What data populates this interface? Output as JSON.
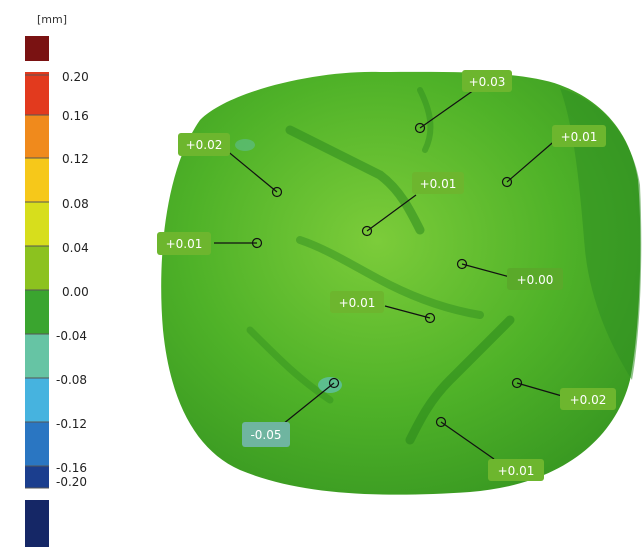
{
  "legend": {
    "unit": "[mm]",
    "ticks": [
      "0.20",
      "0.16",
      "0.12",
      "0.08",
      "0.04",
      "0.00",
      "-0.04",
      "-0.08",
      "-0.12",
      "-0.16",
      "-0.20"
    ],
    "colors": {
      "overflow_high": "#7a1212",
      "band_020_016": "#e23a1e",
      "band_016_012": "#f08a1c",
      "band_012_008": "#f6c81a",
      "band_008_004": "#d7de1c",
      "band_004_000": "#8cc21f",
      "band_000_m004": "#3aa52f",
      "band_m004_m008": "#66c4a4",
      "band_m008_m012": "#46b3df",
      "band_m012_m016": "#2a76c2",
      "band_m016_m020": "#1b3e8e",
      "overflow_low": "#152766"
    }
  },
  "surface": {
    "base_color": "#4fb228",
    "light_color": "#7ccc3a",
    "dark_color": "#2d8a1f"
  },
  "measurements": [
    {
      "label": "+0.03",
      "tag_color": "#6db62e"
    },
    {
      "label": "+0.02",
      "tag_color": "#6db62e"
    },
    {
      "label": "+0.01",
      "tag_color": "#6db62e"
    },
    {
      "label": "+0.01",
      "tag_color": "#6db62e"
    },
    {
      "label": "+0.01",
      "tag_color": "#6db62e"
    },
    {
      "label": "+0.00",
      "tag_color": "#5aaa2a"
    },
    {
      "label": "+0.01",
      "tag_color": "#6db62e"
    },
    {
      "label": "-0.05",
      "tag_color": "#6fb5a0"
    },
    {
      "label": "+0.02",
      "tag_color": "#6db62e"
    },
    {
      "label": "+0.01",
      "tag_color": "#6db62e"
    }
  ]
}
